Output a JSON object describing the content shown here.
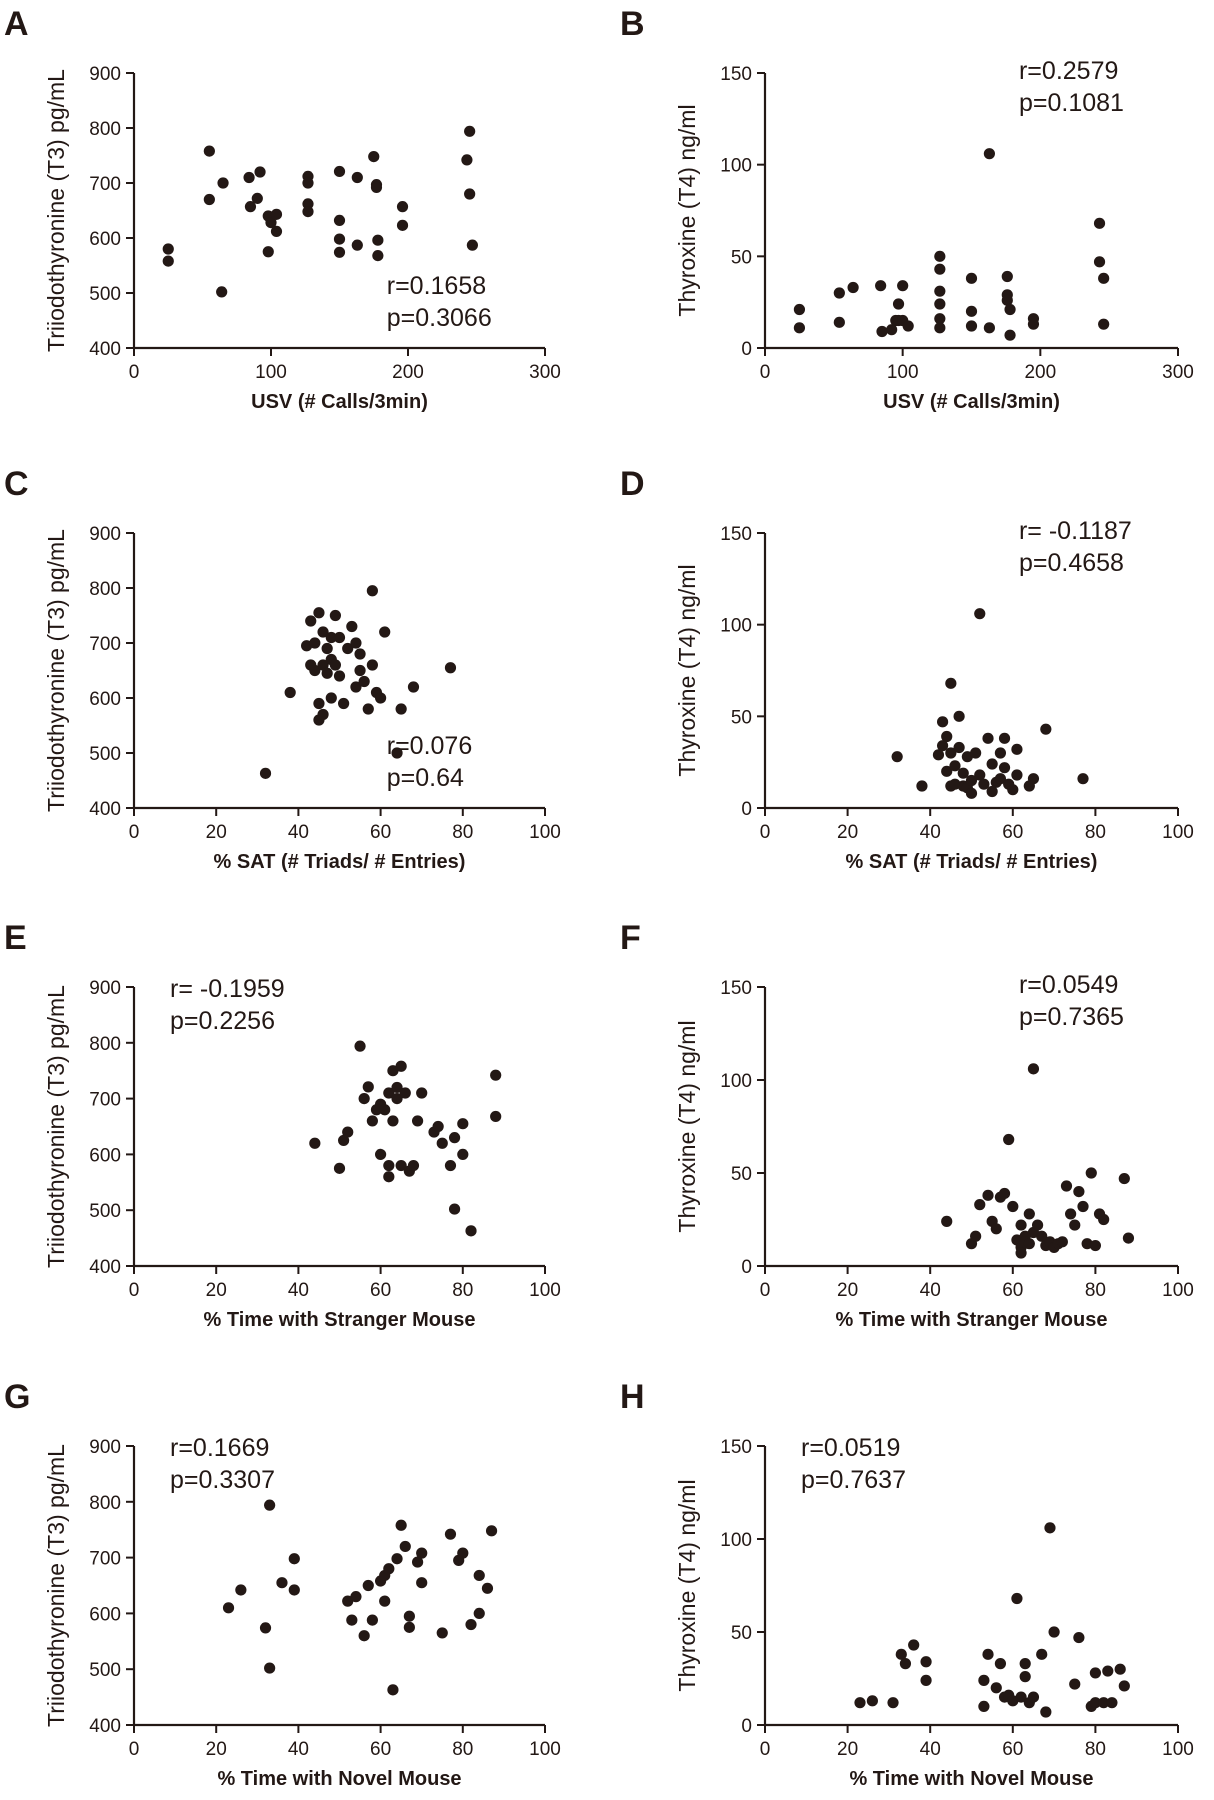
{
  "figure": {
    "background": "#ffffff",
    "ink": "#231815"
  },
  "chart_data": [
    {
      "panel": "A",
      "type": "scatter",
      "xlabel": "USV (# Calls/3min)",
      "ylabel": "Triiodothyronine (T3) pg/mL",
      "xlim": [
        0,
        300
      ],
      "ylim": [
        400,
        900
      ],
      "xticks": [
        0,
        100,
        200,
        300
      ],
      "yticks": [
        400,
        500,
        600,
        700,
        800,
        900
      ],
      "stats": [
        "r=0.1658",
        "p=0.3066"
      ],
      "stats_anchor": "bottom-right",
      "x": [
        25,
        25,
        55,
        55,
        64,
        65,
        84,
        85,
        90,
        92,
        98,
        98,
        100,
        104,
        104,
        127,
        127,
        127,
        127,
        150,
        150,
        150,
        150,
        163,
        163,
        175,
        177,
        177,
        178,
        178,
        196,
        196,
        243,
        245,
        245,
        247
      ],
      "y": [
        580,
        558,
        758,
        670,
        502,
        700,
        710,
        657,
        672,
        720,
        640,
        575,
        628,
        643,
        612,
        712,
        700,
        662,
        648,
        721,
        632,
        598,
        574,
        710,
        587,
        748,
        697,
        692,
        596,
        568,
        657,
        623,
        742,
        680,
        794,
        587
      ]
    },
    {
      "panel": "B",
      "type": "scatter",
      "xlabel": "USV (# Calls/3min)",
      "ylabel": "Thyroxine (T4) ng/ml",
      "xlim": [
        0,
        300
      ],
      "ylim": [
        0,
        150
      ],
      "xticks": [
        0,
        100,
        200,
        300
      ],
      "yticks": [
        0,
        50,
        100,
        150
      ],
      "stats": [
        "r=0.2579",
        "p=0.1081"
      ],
      "stats_anchor": "top-right",
      "x": [
        25,
        25,
        54,
        54,
        64,
        84,
        85,
        92,
        95,
        97,
        97,
        100,
        100,
        104,
        127,
        127,
        127,
        127,
        127,
        127,
        150,
        150,
        150,
        163,
        163,
        176,
        176,
        176,
        178,
        178,
        195,
        195,
        243,
        243,
        246,
        246
      ],
      "y": [
        21,
        11,
        30,
        14,
        33,
        34,
        9,
        10,
        15,
        24,
        15,
        34,
        15,
        12,
        50,
        43,
        31,
        24,
        16,
        11,
        38,
        20,
        12,
        106,
        11,
        39,
        29,
        26,
        21,
        7,
        16,
        13,
        68,
        47,
        38,
        13
      ]
    },
    {
      "panel": "C",
      "type": "scatter",
      "xlabel": "% SAT (# Triads/ # Entries)",
      "ylabel": "Triiodothyronine (T3) pg/mL",
      "xlim": [
        0,
        100
      ],
      "ylim": [
        400,
        900
      ],
      "xticks": [
        0,
        20,
        40,
        60,
        80,
        100
      ],
      "yticks": [
        400,
        500,
        600,
        700,
        800,
        900
      ],
      "stats": [
        "r=0.076",
        "p=0.64"
      ],
      "stats_anchor": "bottom-right",
      "x": [
        32,
        38,
        42,
        43,
        43,
        44,
        44,
        45,
        45,
        45,
        46,
        46,
        46,
        47,
        47,
        48,
        48,
        48,
        49,
        49,
        50,
        50,
        51,
        52,
        53,
        54,
        54,
        55,
        55,
        56,
        57,
        58,
        58,
        59,
        60,
        61,
        64,
        65,
        68,
        77
      ],
      "y": [
        463,
        610,
        695,
        660,
        740,
        650,
        700,
        755,
        590,
        560,
        720,
        660,
        570,
        690,
        645,
        710,
        670,
        600,
        660,
        750,
        640,
        710,
        590,
        690,
        730,
        700,
        620,
        680,
        650,
        630,
        580,
        795,
        660,
        610,
        600,
        720,
        500,
        580,
        620,
        655
      ]
    },
    {
      "panel": "D",
      "type": "scatter",
      "xlabel": "% SAT (# Triads/ # Entries)",
      "ylabel": "Thyroxine (T4) ng/ml",
      "xlim": [
        0,
        100
      ],
      "ylim": [
        0,
        150
      ],
      "xticks": [
        0,
        20,
        40,
        60,
        80,
        100
      ],
      "yticks": [
        0,
        50,
        100,
        150
      ],
      "stats": [
        "r= -0.1187",
        "p=0.4658"
      ],
      "stats_anchor": "top-right",
      "x": [
        32,
        38,
        42,
        43,
        43,
        44,
        44,
        45,
        45,
        45,
        46,
        46,
        47,
        47,
        48,
        48,
        49,
        49,
        50,
        50,
        51,
        52,
        52,
        53,
        54,
        55,
        55,
        56,
        57,
        57,
        58,
        58,
        59,
        60,
        61,
        61,
        64,
        65,
        68,
        77
      ],
      "y": [
        28,
        12,
        29,
        47,
        34,
        20,
        39,
        12,
        30,
        68,
        23,
        13,
        50,
        33,
        19,
        12,
        28,
        11,
        15,
        8,
        30,
        106,
        18,
        13,
        38,
        9,
        24,
        14,
        16,
        30,
        38,
        22,
        13,
        10,
        18,
        32,
        12,
        16,
        43,
        16
      ]
    },
    {
      "panel": "E",
      "type": "scatter",
      "xlabel": "% Time with Stranger Mouse",
      "ylabel": "Triiodothyronine (T3) pg/mL",
      "xlim": [
        0,
        100
      ],
      "ylim": [
        400,
        900
      ],
      "xticks": [
        0,
        20,
        40,
        60,
        80,
        100
      ],
      "yticks": [
        400,
        500,
        600,
        700,
        800,
        900
      ],
      "stats": [
        "r= -0.1959",
        "p=0.2256"
      ],
      "stats_anchor": "top-left",
      "x": [
        44,
        50,
        51,
        52,
        55,
        56,
        57,
        58,
        59,
        60,
        60,
        61,
        62,
        62,
        62,
        63,
        63,
        64,
        64,
        65,
        65,
        66,
        67,
        68,
        69,
        70,
        73,
        74,
        75,
        77,
        78,
        78,
        80,
        80,
        82,
        88,
        88
      ],
      "y": [
        620,
        575,
        625,
        640,
        794,
        700,
        721,
        660,
        680,
        690,
        600,
        680,
        710,
        580,
        560,
        750,
        660,
        720,
        700,
        758,
        580,
        710,
        570,
        580,
        660,
        710,
        640,
        650,
        620,
        580,
        630,
        502,
        655,
        600,
        463,
        742,
        668
      ]
    },
    {
      "panel": "F",
      "type": "scatter",
      "xlabel": "% Time with Stranger Mouse",
      "ylabel": "Thyroxine (T4) ng/ml",
      "xlim": [
        0,
        100
      ],
      "ylim": [
        0,
        150
      ],
      "xticks": [
        0,
        20,
        40,
        60,
        80,
        100
      ],
      "yticks": [
        0,
        50,
        100,
        150
      ],
      "stats": [
        "r=0.0549",
        "p=0.7365"
      ],
      "stats_anchor": "top-right",
      "x": [
        44,
        50,
        51,
        52,
        54,
        55,
        56,
        57,
        58,
        59,
        60,
        61,
        62,
        62,
        62,
        63,
        63,
        64,
        64,
        65,
        65,
        66,
        67,
        68,
        69,
        70,
        71,
        72,
        73,
        74,
        75,
        76,
        77,
        78,
        79,
        80,
        81,
        82,
        87,
        88
      ],
      "y": [
        24,
        12,
        16,
        33,
        38,
        24,
        20,
        37,
        39,
        68,
        32,
        14,
        10,
        7,
        22,
        16,
        13,
        28,
        12,
        106,
        18,
        22,
        16,
        11,
        13,
        10,
        12,
        13,
        43,
        28,
        22,
        40,
        32,
        12,
        50,
        11,
        28,
        25,
        47,
        15
      ]
    },
    {
      "panel": "G",
      "type": "scatter",
      "xlabel": "% Time with Novel Mouse",
      "ylabel": "Triiodothyronine (T3) pg/mL",
      "xlim": [
        0,
        100
      ],
      "ylim": [
        400,
        900
      ],
      "xticks": [
        0,
        20,
        40,
        60,
        80,
        100
      ],
      "yticks": [
        400,
        500,
        600,
        700,
        800,
        900
      ],
      "stats": [
        "r=0.1669",
        "p=0.3307"
      ],
      "stats_anchor": "top-left",
      "x": [
        23,
        26,
        32,
        33,
        33,
        36,
        39,
        39,
        52,
        53,
        54,
        56,
        57,
        58,
        60,
        61,
        61,
        62,
        63,
        64,
        65,
        66,
        67,
        67,
        69,
        70,
        70,
        75,
        77,
        79,
        80,
        82,
        84,
        84,
        86,
        87
      ],
      "y": [
        610,
        642,
        574,
        794,
        502,
        655,
        698,
        642,
        622,
        588,
        630,
        560,
        650,
        588,
        658,
        668,
        622,
        680,
        463,
        698,
        758,
        720,
        595,
        575,
        692,
        708,
        655,
        565,
        742,
        695,
        708,
        580,
        668,
        600,
        645,
        748
      ]
    },
    {
      "panel": "H",
      "type": "scatter",
      "xlabel": "% Time with Novel Mouse",
      "ylabel": "Thyroxine (T4) ng/ml",
      "xlim": [
        0,
        100
      ],
      "ylim": [
        0,
        150
      ],
      "xticks": [
        0,
        20,
        40,
        60,
        80,
        100
      ],
      "yticks": [
        0,
        50,
        100,
        150
      ],
      "stats": [
        "r=0.0519",
        "p=0.7637"
      ],
      "stats_anchor": "top-left",
      "x": [
        23,
        26,
        31,
        33,
        34,
        36,
        39,
        39,
        53,
        53,
        54,
        56,
        57,
        58,
        59,
        60,
        61,
        62,
        63,
        63,
        64,
        65,
        67,
        68,
        69,
        70,
        75,
        76,
        79,
        80,
        80,
        82,
        83,
        84,
        86,
        87
      ],
      "y": [
        12,
        13,
        12,
        38,
        33,
        43,
        34,
        24,
        24,
        10,
        38,
        20,
        33,
        15,
        16,
        13,
        68,
        15,
        26,
        33,
        12,
        15,
        38,
        7,
        106,
        50,
        22,
        47,
        10,
        28,
        12,
        12,
        29,
        12,
        30,
        21
      ]
    }
  ]
}
